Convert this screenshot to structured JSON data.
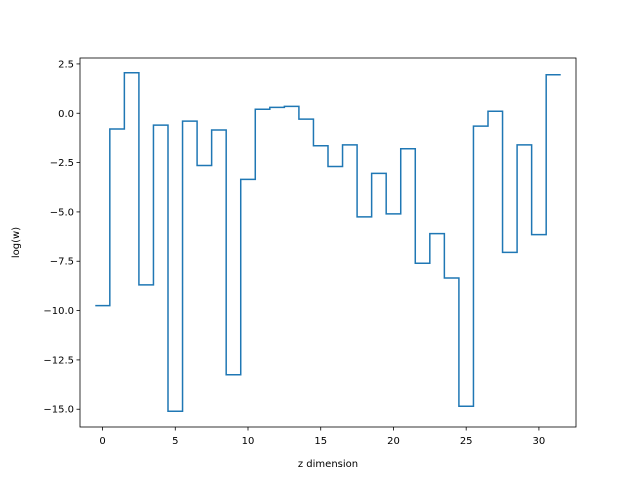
{
  "chart_data": {
    "type": "line",
    "drawstyle": "steps-mid",
    "title": "",
    "xlabel": "z dimension",
    "ylabel": "log(w)",
    "xlim": [
      -1.55,
      32.55
    ],
    "ylim": [
      -15.9,
      2.8
    ],
    "xticks": [
      0,
      5,
      10,
      15,
      20,
      25,
      30
    ],
    "yticks": [
      2.5,
      0.0,
      -2.5,
      -5.0,
      -7.5,
      -10.0,
      -12.5,
      -15.0
    ],
    "ytick_labels": [
      "2.5",
      "0.0",
      "−2.5",
      "−5.0",
      "−7.5",
      "−10.0",
      "−12.5",
      "−15.0"
    ],
    "grid": false,
    "color": "#1f77b4",
    "x": [
      0,
      1,
      2,
      3,
      4,
      5,
      6,
      7,
      8,
      9,
      10,
      11,
      12,
      13,
      14,
      15,
      16,
      17,
      18,
      19,
      20,
      21,
      22,
      23,
      24,
      25,
      26,
      27,
      28,
      29,
      30,
      31
    ],
    "values": [
      -9.75,
      -0.8,
      2.05,
      -8.7,
      -0.6,
      -15.1,
      -0.4,
      -2.65,
      -0.85,
      -13.25,
      -3.35,
      0.2,
      0.3,
      0.35,
      -0.3,
      -1.65,
      -2.7,
      -1.6,
      -5.25,
      -3.05,
      -5.1,
      -1.8,
      -7.6,
      -6.1,
      -8.35,
      -14.85,
      -0.65,
      0.1,
      -7.05,
      -1.6,
      -6.15,
      1.95
    ]
  }
}
